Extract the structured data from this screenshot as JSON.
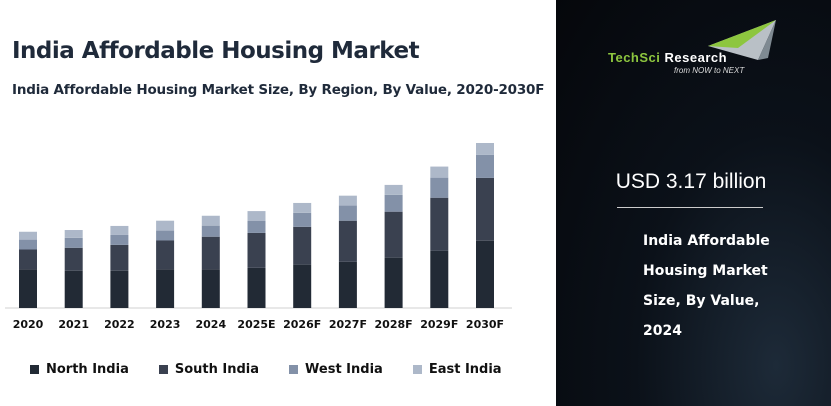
{
  "header": {
    "title": "India Affordable Housing Market",
    "subtitle": "India Affordable Housing Market Size, By Region, By Value, 2020-2030F"
  },
  "brand": {
    "logo_text_1": "TechSci",
    "logo_text_2": "Research",
    "tagline": "from NOW to NEXT",
    "green": "#8dc63f"
  },
  "highlight": {
    "value": "USD 3.17 billion",
    "description": "India Affordable Housing Market Size, By Value, 2024"
  },
  "chart_data": {
    "type": "bar",
    "stacked": true,
    "title": "",
    "xlabel": "",
    "ylabel": "",
    "grid": false,
    "legend_position": "bottom",
    "categories": [
      "2020",
      "2021",
      "2022",
      "2023",
      "2024",
      "2025E",
      "2026F",
      "2027F",
      "2028F",
      "2029F",
      "2030F"
    ],
    "series": [
      {
        "name": "North India",
        "color": "#222a35",
        "values": [
          1.32,
          1.28,
          1.28,
          1.32,
          1.32,
          1.38,
          1.49,
          1.59,
          1.73,
          1.97,
          2.31
        ]
      },
      {
        "name": "South India",
        "color": "#3a4150",
        "values": [
          0.69,
          0.79,
          0.89,
          1.0,
          1.13,
          1.2,
          1.3,
          1.41,
          1.58,
          1.82,
          2.16
        ]
      },
      {
        "name": "West India",
        "color": "#8391a8",
        "values": [
          0.34,
          0.34,
          0.34,
          0.34,
          0.38,
          0.41,
          0.48,
          0.52,
          0.58,
          0.69,
          0.79
        ]
      },
      {
        "name": "East India",
        "color": "#adb8c9",
        "values": [
          0.27,
          0.27,
          0.31,
          0.34,
          0.34,
          0.34,
          0.34,
          0.34,
          0.34,
          0.38,
          0.41
        ]
      }
    ]
  }
}
